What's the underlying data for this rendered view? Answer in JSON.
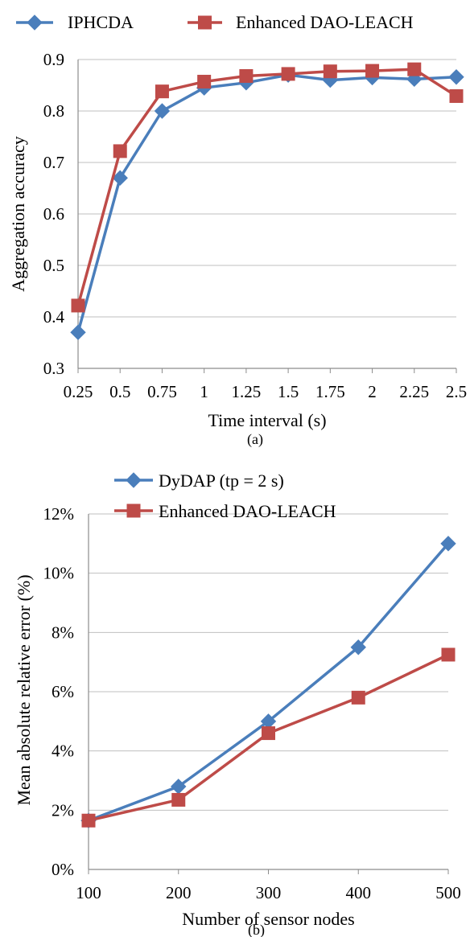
{
  "chart_data": [
    {
      "type": "line",
      "caption": "(a)",
      "xlabel": "Time interval (s)",
      "ylabel": "Aggregation accuracy",
      "categories": [
        "0.25",
        "0.5",
        "0.75",
        "1",
        "1.25",
        "1.5",
        "1.75",
        "2",
        "2.25",
        "2.5"
      ],
      "ylim": [
        0.3,
        0.9
      ],
      "yticks": [
        0.3,
        0.4,
        0.5,
        0.6,
        0.7,
        0.8,
        0.9
      ],
      "ytick_labels": [
        "0.3",
        "0.4",
        "0.5",
        "0.6",
        "0.7",
        "0.8",
        "0.9"
      ],
      "grid": true,
      "legend_position": "top",
      "series": [
        {
          "name": "IPHCDA",
          "marker": "diamond",
          "color": "#4a7ebb",
          "values": [
            0.37,
            0.67,
            0.8,
            0.845,
            0.855,
            0.87,
            0.86,
            0.865,
            0.862,
            0.866
          ]
        },
        {
          "name": "Enhanced DAO-LEACH",
          "marker": "square",
          "color": "#be4b48",
          "values": [
            0.422,
            0.722,
            0.838,
            0.857,
            0.868,
            0.872,
            0.877,
            0.878,
            0.881,
            0.829
          ]
        }
      ]
    },
    {
      "type": "line",
      "caption": "(b)",
      "xlabel": "Number of sensor nodes",
      "ylabel": "Mean absolute relative error (%)",
      "categories": [
        "100",
        "200",
        "300",
        "400",
        "500"
      ],
      "ylim": [
        0,
        12
      ],
      "yticks": [
        0,
        2,
        4,
        6,
        8,
        10,
        12
      ],
      "ytick_labels": [
        "0%",
        "2%",
        "4%",
        "6%",
        "8%",
        "10%",
        "12%"
      ],
      "grid": true,
      "legend_position": "top",
      "series": [
        {
          "name": "DyDAP (tp = 2 s)",
          "marker": "diamond",
          "color": "#4a7ebb",
          "values": [
            1.65,
            2.8,
            5.0,
            7.5,
            11.0
          ]
        },
        {
          "name": "Enhanced DAO-LEACH",
          "marker": "square",
          "color": "#be4b48",
          "values": [
            1.65,
            2.35,
            4.6,
            5.8,
            7.25
          ]
        }
      ]
    }
  ]
}
